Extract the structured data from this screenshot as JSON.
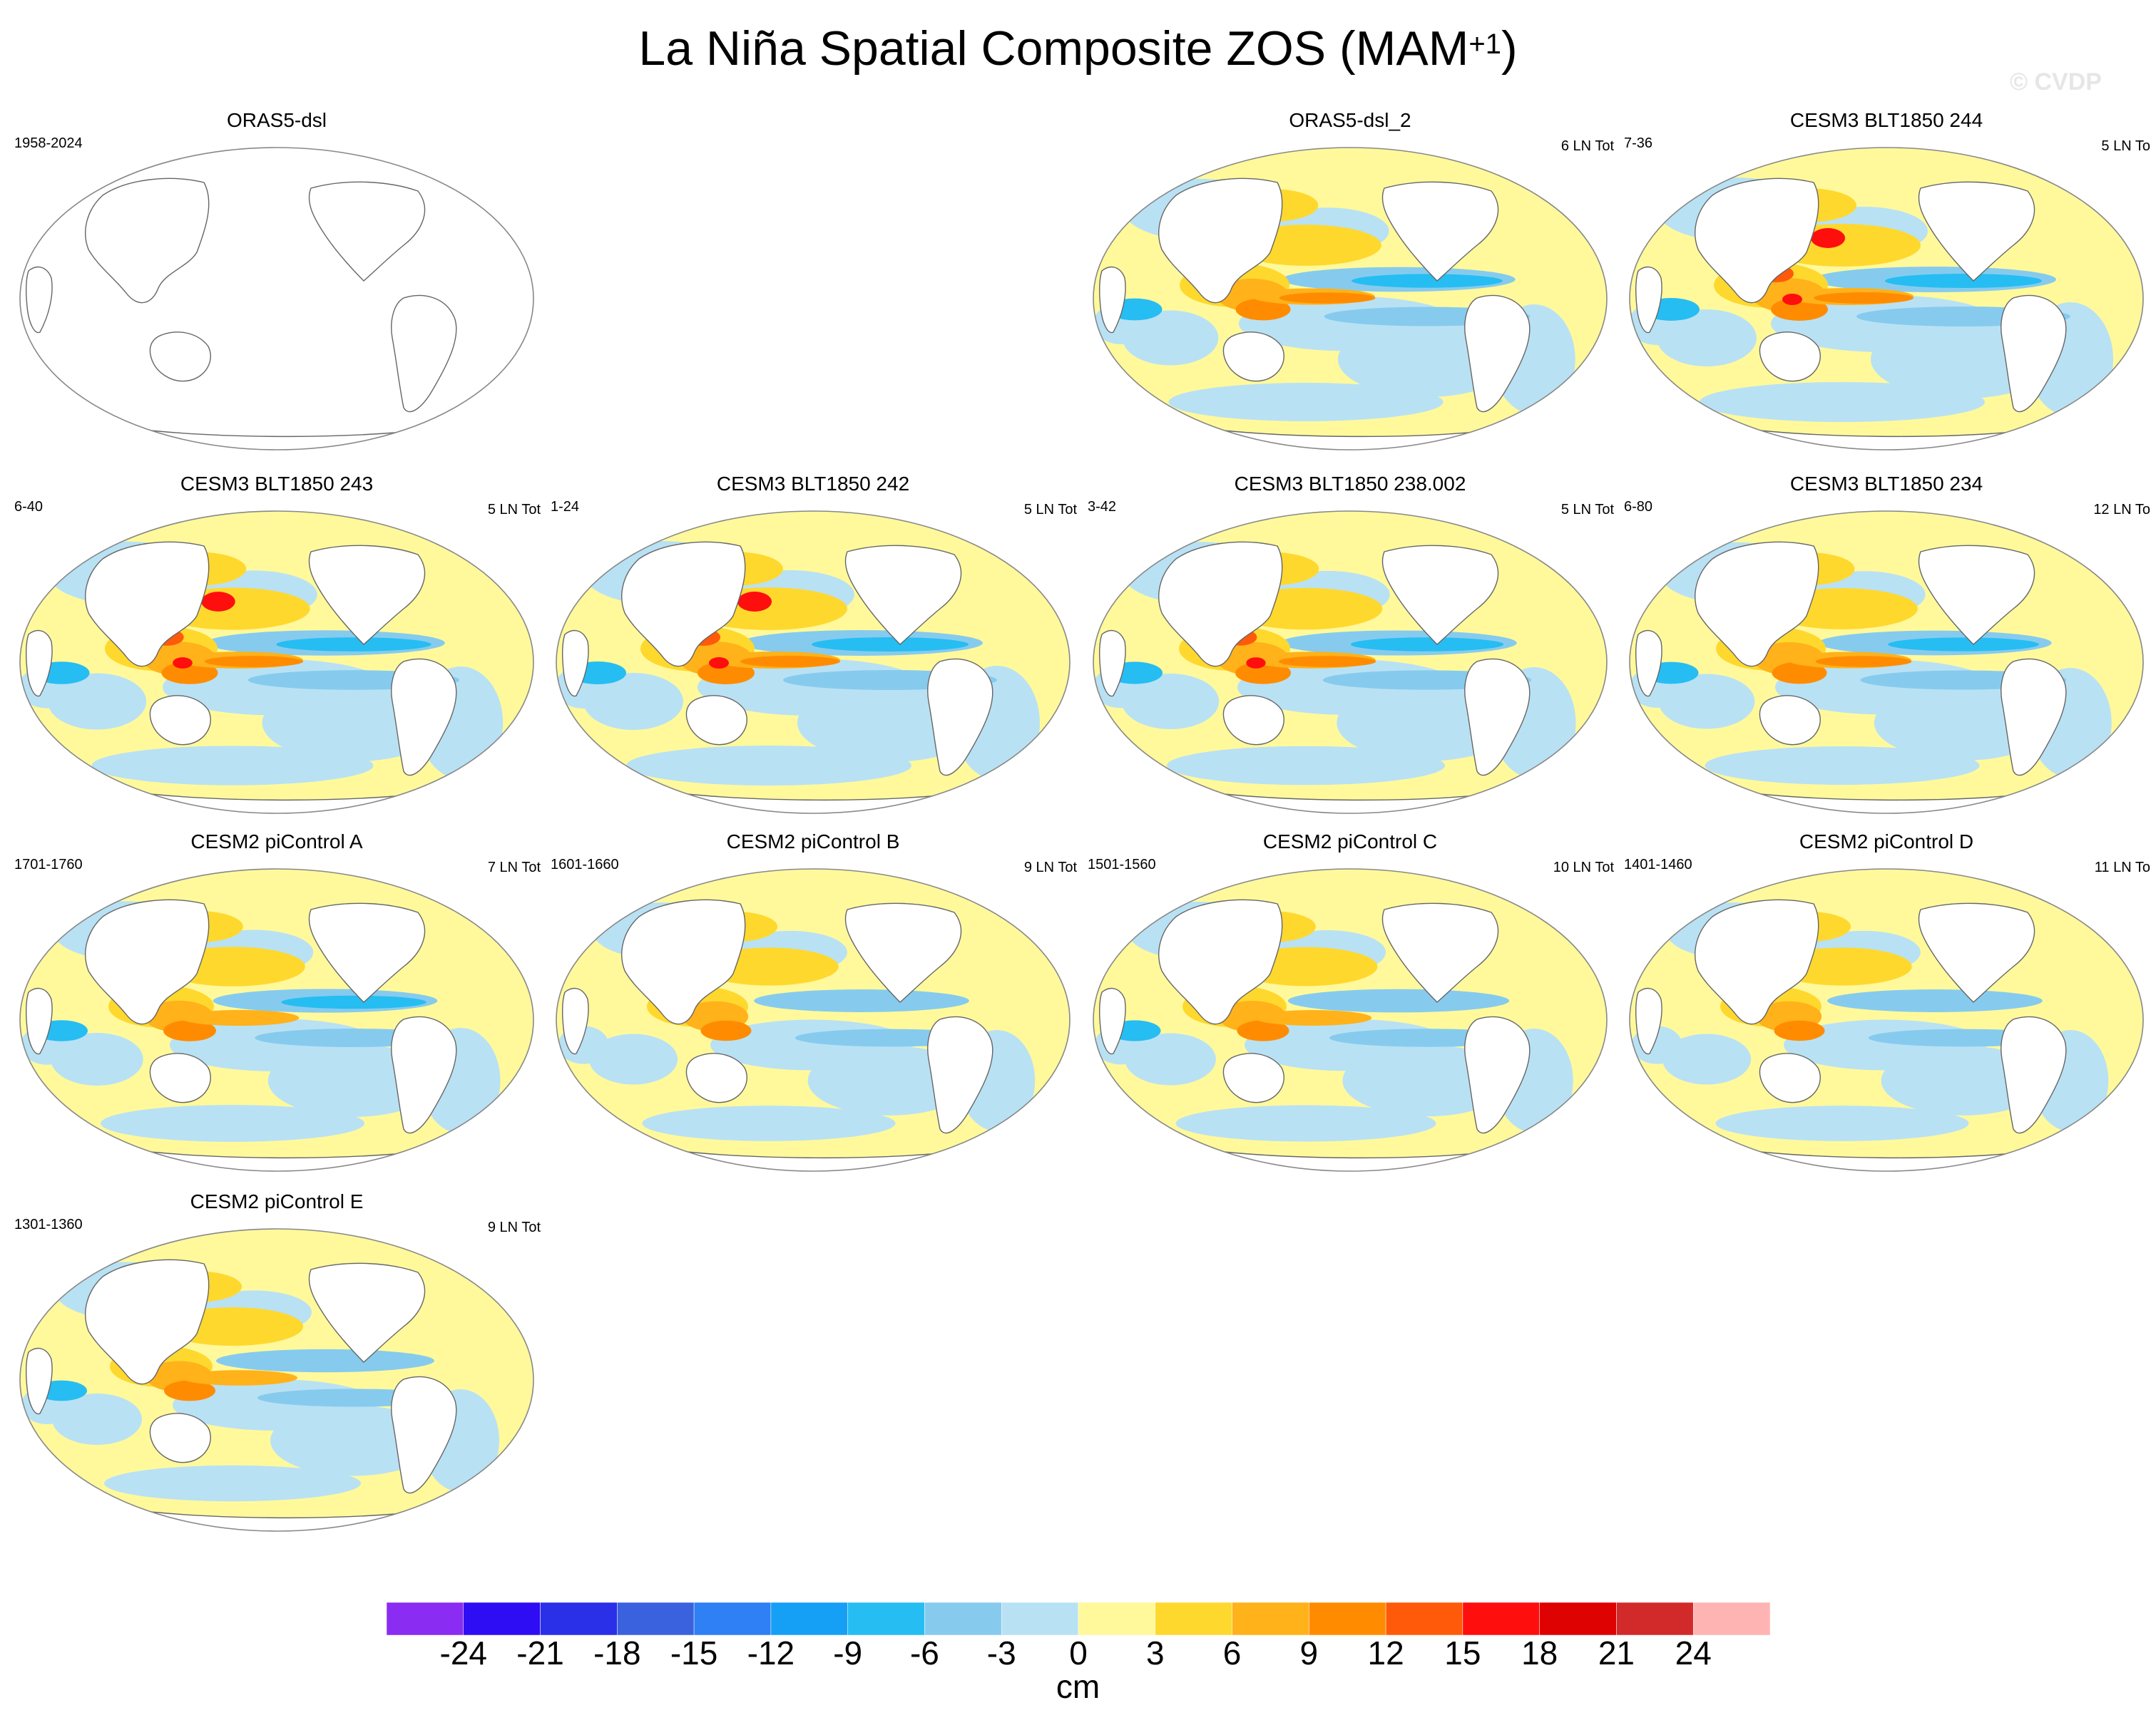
{
  "figure": {
    "title": "La Niña Spatial Composite ZOS (MAM",
    "title_superscript": "+1",
    "title_suffix": ")",
    "watermark": "© CVDP"
  },
  "panels": [
    {
      "title": "ORAS5-dsl",
      "years": "1958-2024",
      "count": "",
      "empty": true,
      "intensity": 0
    },
    {
      "title": "ORAS5-dsl_2",
      "years": "",
      "count": "6 LN Tot",
      "empty": false,
      "intensity": 0.85
    },
    {
      "title": "CESM3 BLT1850 244",
      "years": "7-36",
      "count": "5 LN To",
      "empty": false,
      "intensity": 1.0
    },
    {
      "title": "CESM3 BLT1850 243",
      "years": "6-40",
      "count": "5 LN Tot",
      "empty": false,
      "intensity": 0.95
    },
    {
      "title": "CESM3 BLT1850 242",
      "years": "1-24",
      "count": "5 LN Tot",
      "empty": false,
      "intensity": 1.0
    },
    {
      "title": "CESM3 BLT1850 238.002",
      "years": "3-42",
      "count": "5 LN Tot",
      "empty": false,
      "intensity": 0.9
    },
    {
      "title": "CESM3 BLT1850 234",
      "years": "6-80",
      "count": "12 LN To",
      "empty": false,
      "intensity": 0.85
    },
    {
      "title": "CESM2 piControl A",
      "years": "1701-1760",
      "count": "7 LN Tot",
      "empty": false,
      "intensity": 0.7
    },
    {
      "title": "CESM2 piControl B",
      "years": "1601-1660",
      "count": "9 LN Tot",
      "empty": false,
      "intensity": 0.55
    },
    {
      "title": "CESM2 piControl C",
      "years": "1501-1560",
      "count": "10 LN Tot",
      "empty": false,
      "intensity": 0.65
    },
    {
      "title": "CESM2 piControl D",
      "years": "1401-1460",
      "count": "11 LN To",
      "empty": false,
      "intensity": 0.55
    },
    {
      "title": "CESM2 piControl E",
      "years": "1301-1360",
      "count": "9 LN Tot",
      "empty": false,
      "intensity": 0.6
    }
  ],
  "colorbar": {
    "units": "cm",
    "tick_labels": [
      "-24",
      "-21",
      "-18",
      "-15",
      "-12",
      "-9",
      "-6",
      "-3",
      "0",
      "3",
      "6",
      "9",
      "12",
      "15",
      "18",
      "21",
      "24"
    ],
    "colors": [
      "#8a2cf2",
      "#2e0df5",
      "#2a2fe8",
      "#3a62de",
      "#2f7ff5",
      "#16a0f5",
      "#26bdf2",
      "#86cbee",
      "#b9e1f4",
      "#fff99c",
      "#ffd82e",
      "#ffb21a",
      "#ff8c00",
      "#ff5a0a",
      "#ff0e0e",
      "#de0202",
      "#d22a2a",
      "#ffb4b4"
    ]
  }
}
